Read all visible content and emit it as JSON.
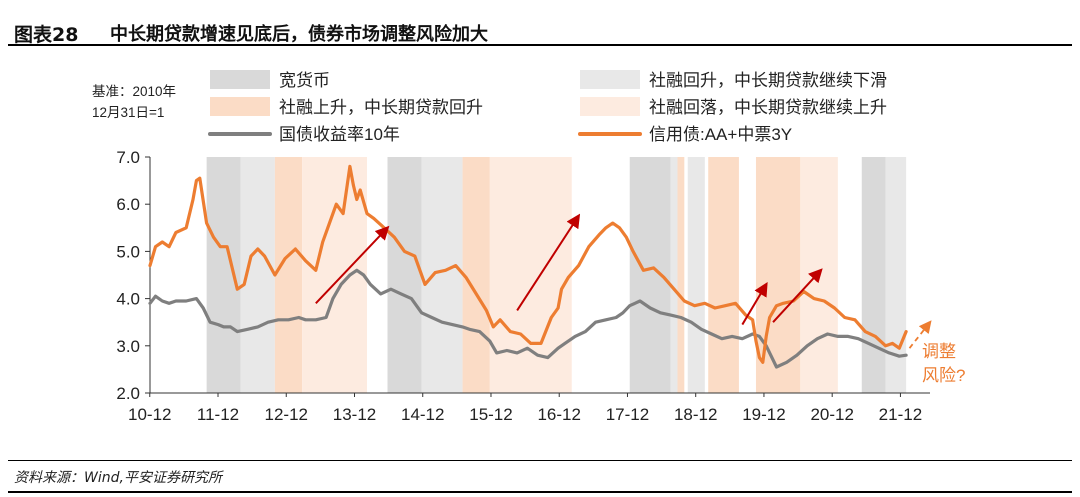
{
  "header": {
    "figure_label": "图表28",
    "title": "中长期贷款增速见底后，债券市场调整风险加大"
  },
  "footer": {
    "source": "资料来源：Wind,平安证券研究所"
  },
  "chart_data": {
    "type": "line",
    "title": "中长期贷款增速见底后，债券市场调整风险加大",
    "base_note": [
      "基准：2010年",
      "12月31日=1"
    ],
    "x_ticks": [
      "10-12",
      "11-12",
      "12-12",
      "13-12",
      "14-12",
      "15-12",
      "16-12",
      "17-12",
      "18-12",
      "19-12",
      "20-12",
      "21-12"
    ],
    "x_range": [
      2010.92,
      2022.35
    ],
    "ylim": [
      2.0,
      7.0
    ],
    "y_ticks": [
      "2.0",
      "3.0",
      "4.0",
      "5.0",
      "6.0",
      "7.0"
    ],
    "colors": {
      "easy_money": "#d9d9d9",
      "tsf_up_mlt_down": "#e8e8e8",
      "tsf_up_mlt_up": "#fbdcc6",
      "tsf_down_mlt_up": "#fdebe0",
      "govt_bond": "#7f7f7f",
      "credit_bond": "#ed7d31",
      "arrow": "#c00000"
    },
    "legend": [
      {
        "key": "easy_money",
        "label": "宽货币",
        "kind": "patch"
      },
      {
        "key": "tsf_up_mlt_down",
        "label": "社融回升，中长期贷款继续下滑",
        "kind": "patch"
      },
      {
        "key": "tsf_up_mlt_up",
        "label": "社融上升，中长期贷款回升",
        "kind": "patch"
      },
      {
        "key": "tsf_down_mlt_up",
        "label": "社融回落，中长期贷款继续上升",
        "kind": "patch"
      },
      {
        "key": "govt_bond",
        "label": "国债收益率10年",
        "kind": "line"
      },
      {
        "key": "credit_bond",
        "label": "信用债:AA+中票3Y",
        "kind": "line"
      }
    ],
    "shaded_periods": [
      {
        "start": 2011.75,
        "end": 2012.25,
        "key": "easy_money"
      },
      {
        "start": 2012.25,
        "end": 2012.75,
        "key": "tsf_up_mlt_down"
      },
      {
        "start": 2012.75,
        "end": 2013.15,
        "key": "tsf_up_mlt_up"
      },
      {
        "start": 2013.15,
        "end": 2014.1,
        "key": "tsf_down_mlt_up"
      },
      {
        "start": 2014.4,
        "end": 2014.9,
        "key": "easy_money"
      },
      {
        "start": 2014.9,
        "end": 2015.5,
        "key": "tsf_up_mlt_down"
      },
      {
        "start": 2015.5,
        "end": 2015.9,
        "key": "tsf_up_mlt_up"
      },
      {
        "start": 2015.9,
        "end": 2017.1,
        "key": "tsf_down_mlt_up"
      },
      {
        "start": 2017.95,
        "end": 2018.55,
        "key": "easy_money"
      },
      {
        "start": 2018.55,
        "end": 2018.65,
        "key": "tsf_up_mlt_down"
      },
      {
        "start": 2018.65,
        "end": 2018.75,
        "key": "tsf_up_mlt_up"
      },
      {
        "start": 2018.8,
        "end": 2019.05,
        "key": "tsf_up_mlt_down"
      },
      {
        "start": 2019.1,
        "end": 2019.55,
        "key": "tsf_up_mlt_up"
      },
      {
        "start": 2019.8,
        "end": 2020.45,
        "key": "tsf_up_mlt_up"
      },
      {
        "start": 2020.45,
        "end": 2021.0,
        "key": "tsf_down_mlt_up"
      },
      {
        "start": 2021.35,
        "end": 2021.7,
        "key": "easy_money"
      },
      {
        "start": 2021.7,
        "end": 2022.0,
        "key": "tsf_up_mlt_down"
      }
    ],
    "series": [
      {
        "name": "国债收益率10年",
        "key": "govt_bond",
        "x": [
          2010.92,
          2011.0,
          2011.1,
          2011.2,
          2011.3,
          2011.45,
          2011.6,
          2011.7,
          2011.8,
          2011.92,
          2012.0,
          2012.1,
          2012.2,
          2012.35,
          2012.5,
          2012.65,
          2012.8,
          2012.95,
          2013.1,
          2013.2,
          2013.35,
          2013.5,
          2013.6,
          2013.72,
          2013.85,
          2013.95,
          2014.05,
          2014.15,
          2014.3,
          2014.45,
          2014.6,
          2014.75,
          2014.9,
          2015.05,
          2015.2,
          2015.35,
          2015.5,
          2015.6,
          2015.75,
          2015.9,
          2016.0,
          2016.15,
          2016.3,
          2016.45,
          2016.6,
          2016.75,
          2016.9,
          2017.0,
          2017.15,
          2017.3,
          2017.45,
          2017.6,
          2017.75,
          2017.85,
          2017.95,
          2018.1,
          2018.25,
          2018.4,
          2018.55,
          2018.7,
          2018.85,
          2019.0,
          2019.15,
          2019.3,
          2019.45,
          2019.6,
          2019.75,
          2019.85,
          2019.95,
          2020.1,
          2020.25,
          2020.4,
          2020.55,
          2020.7,
          2020.85,
          2021.0,
          2021.15,
          2021.3,
          2021.45,
          2021.6,
          2021.75,
          2021.9,
          2022.0
        ],
        "y": [
          3.9,
          4.05,
          3.95,
          3.9,
          3.95,
          3.95,
          4.0,
          3.8,
          3.5,
          3.45,
          3.4,
          3.4,
          3.3,
          3.35,
          3.4,
          3.5,
          3.55,
          3.55,
          3.6,
          3.55,
          3.55,
          3.6,
          4.0,
          4.3,
          4.5,
          4.6,
          4.5,
          4.3,
          4.1,
          4.2,
          4.1,
          4.0,
          3.7,
          3.6,
          3.5,
          3.45,
          3.4,
          3.35,
          3.3,
          3.1,
          2.85,
          2.9,
          2.85,
          2.95,
          2.8,
          2.75,
          2.95,
          3.05,
          3.2,
          3.3,
          3.5,
          3.55,
          3.6,
          3.7,
          3.85,
          3.95,
          3.8,
          3.7,
          3.65,
          3.6,
          3.5,
          3.35,
          3.25,
          3.15,
          3.2,
          3.15,
          3.25,
          3.2,
          3.0,
          2.55,
          2.65,
          2.8,
          3.0,
          3.15,
          3.25,
          3.2,
          3.2,
          3.15,
          3.05,
          2.95,
          2.85,
          2.78,
          2.8
        ]
      },
      {
        "name": "信用债:AA+中票3Y",
        "key": "credit_bond",
        "x": [
          2010.92,
          2011.0,
          2011.1,
          2011.2,
          2011.3,
          2011.45,
          2011.55,
          2011.6,
          2011.65,
          2011.75,
          2011.85,
          2011.95,
          2012.05,
          2012.2,
          2012.3,
          2012.4,
          2012.5,
          2012.6,
          2012.75,
          2012.9,
          2013.05,
          2013.2,
          2013.35,
          2013.45,
          2013.55,
          2013.65,
          2013.75,
          2013.8,
          2013.85,
          2013.9,
          2013.95,
          2014.0,
          2014.1,
          2014.2,
          2014.35,
          2014.5,
          2014.65,
          2014.8,
          2014.95,
          2015.1,
          2015.25,
          2015.4,
          2015.55,
          2015.7,
          2015.85,
          2015.95,
          2016.05,
          2016.2,
          2016.35,
          2016.5,
          2016.65,
          2016.8,
          2016.9,
          2016.95,
          2017.05,
          2017.2,
          2017.35,
          2017.5,
          2017.6,
          2017.7,
          2017.8,
          2017.9,
          2018.0,
          2018.15,
          2018.3,
          2018.45,
          2018.6,
          2018.75,
          2018.9,
          2019.05,
          2019.2,
          2019.35,
          2019.5,
          2019.65,
          2019.75,
          2019.8,
          2019.85,
          2019.9,
          2019.95,
          2020.0,
          2020.1,
          2020.2,
          2020.35,
          2020.5,
          2020.65,
          2020.8,
          2020.95,
          2021.1,
          2021.25,
          2021.4,
          2021.55,
          2021.7,
          2021.8,
          2021.9,
          2022.0
        ],
        "y": [
          4.7,
          5.1,
          5.2,
          5.1,
          5.4,
          5.5,
          6.1,
          6.5,
          6.55,
          5.6,
          5.3,
          5.1,
          5.1,
          4.2,
          4.3,
          4.9,
          5.05,
          4.9,
          4.5,
          4.85,
          5.05,
          4.8,
          4.6,
          5.2,
          5.6,
          6.0,
          5.8,
          6.3,
          6.8,
          6.4,
          6.1,
          6.3,
          5.8,
          5.7,
          5.5,
          5.3,
          5.0,
          4.9,
          4.3,
          4.55,
          4.6,
          4.7,
          4.45,
          4.1,
          3.75,
          3.4,
          3.55,
          3.3,
          3.25,
          3.05,
          3.05,
          3.6,
          3.8,
          4.2,
          4.45,
          4.7,
          5.1,
          5.35,
          5.5,
          5.6,
          5.5,
          5.3,
          5.0,
          4.6,
          4.65,
          4.45,
          4.2,
          3.95,
          3.85,
          3.9,
          3.8,
          3.85,
          3.9,
          3.65,
          3.55,
          3.1,
          2.75,
          2.65,
          3.2,
          3.6,
          3.85,
          3.9,
          3.95,
          4.15,
          4.0,
          3.95,
          3.8,
          3.6,
          3.55,
          3.3,
          3.2,
          3.0,
          3.05,
          2.95,
          3.3
        ]
      }
    ],
    "trend_arrows": [
      {
        "from": [
          2013.35,
          3.9
        ],
        "to": [
          2014.4,
          5.5
        ]
      },
      {
        "from": [
          2016.3,
          3.75
        ],
        "to": [
          2017.2,
          5.75
        ]
      },
      {
        "from": [
          2019.6,
          3.45
        ],
        "to": [
          2019.95,
          4.3
        ]
      },
      {
        "from": [
          2020.05,
          3.5
        ],
        "to": [
          2020.75,
          4.6
        ]
      }
    ],
    "projection_arrow": {
      "from": [
        2022.05,
        2.95
      ],
      "to": [
        2022.35,
        3.5
      ]
    },
    "annotation": [
      "调整",
      "风险?"
    ]
  }
}
